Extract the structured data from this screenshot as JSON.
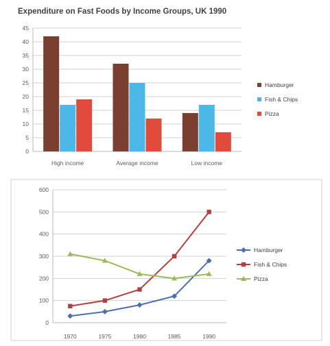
{
  "chart_data": [
    {
      "type": "bar",
      "title": "Expenditure on Fast Foods by Income Groups, UK 1990",
      "xlabel": "",
      "ylabel": "",
      "categories": [
        "High income",
        "Average income",
        "Low income"
      ],
      "ylim": [
        0,
        45
      ],
      "yticks": [
        "0",
        "5",
        "10",
        "15",
        "20",
        "25",
        "30",
        "35",
        "40",
        "45"
      ],
      "grid": true,
      "legend": "right",
      "series": [
        {
          "name": "Hamburger",
          "color": "#7b3f2f",
          "values": [
            42,
            32,
            14
          ]
        },
        {
          "name": "Fish & Chips",
          "color": "#4cb8e8",
          "values": [
            17,
            25,
            17
          ]
        },
        {
          "name": "Pizza",
          "color": "#e04b3c",
          "values": [
            19,
            12,
            7
          ]
        }
      ]
    },
    {
      "type": "line",
      "title": "",
      "xlabel": "",
      "ylabel": "",
      "x": [
        "1970",
        "1975",
        "1980",
        "1985",
        "1990"
      ],
      "ylim": [
        0,
        600
      ],
      "yticks": [
        "0",
        "100",
        "200",
        "300",
        "400",
        "500",
        "600"
      ],
      "grid": true,
      "legend": "right",
      "series": [
        {
          "name": "Hamburger",
          "color": "#4a6fb0",
          "marker": "diamond",
          "values": [
            30,
            50,
            80,
            120,
            280
          ]
        },
        {
          "name": "Fish & Chips",
          "color": "#b0403c",
          "marker": "square",
          "values": [
            75,
            100,
            150,
            300,
            500
          ]
        },
        {
          "name": "Pizza",
          "color": "#9bbb59",
          "marker": "triangle",
          "values": [
            310,
            280,
            220,
            200,
            220
          ]
        }
      ]
    }
  ]
}
